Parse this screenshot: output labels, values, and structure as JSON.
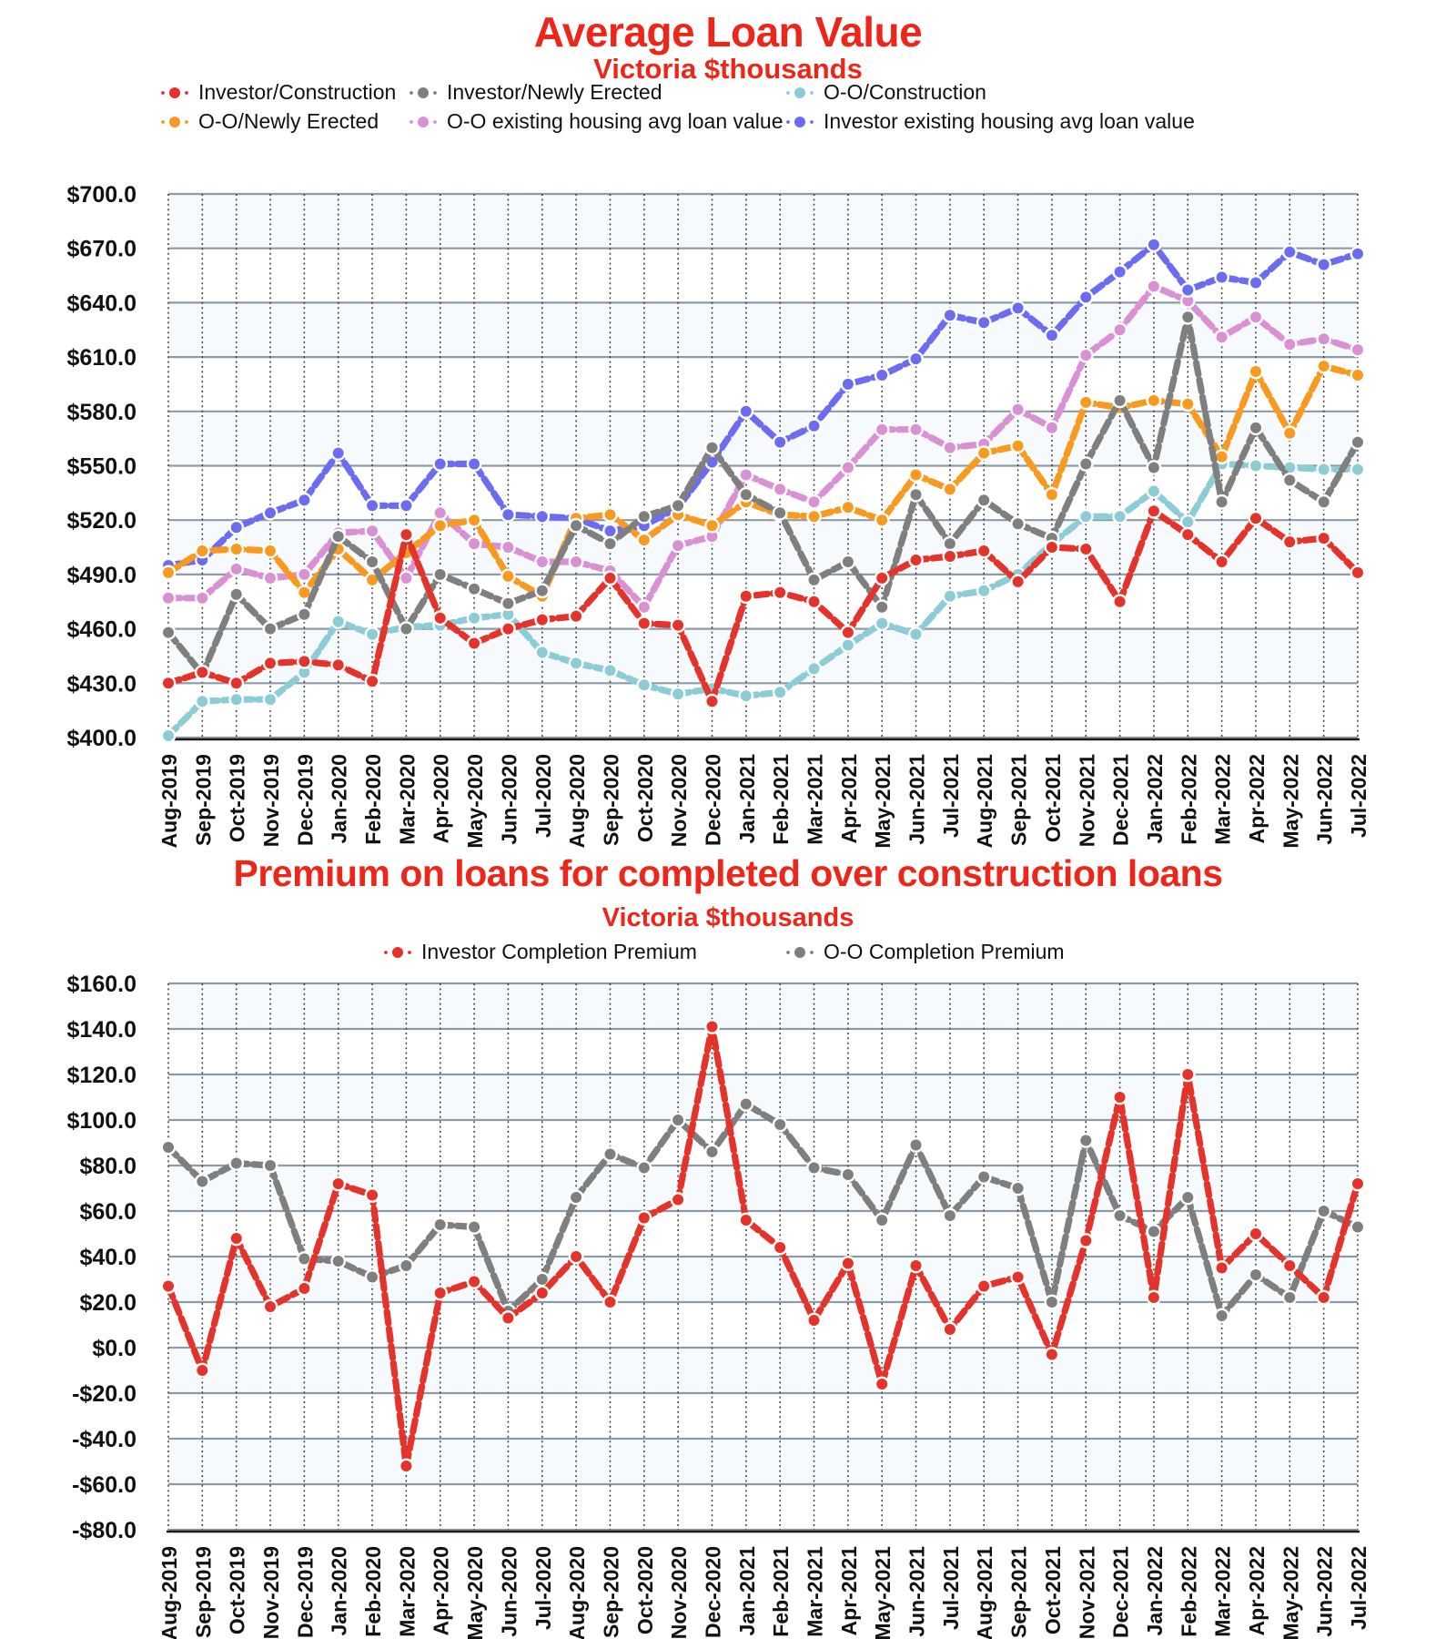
{
  "charts": [
    {
      "title": "Average Loan Value",
      "subtitle": "Victoria $thousands",
      "chart_data": {
        "type": "line",
        "x": [
          "Aug-2019",
          "Sep-2019",
          "Oct-2019",
          "Nov-2019",
          "Dec-2019",
          "Jan-2020",
          "Feb-2020",
          "Mar-2020",
          "Apr-2020",
          "May-2020",
          "Jun-2020",
          "Jul-2020",
          "Aug-2020",
          "Sep-2020",
          "Oct-2020",
          "Nov-2020",
          "Dec-2020",
          "Jan-2021",
          "Feb-2021",
          "Mar-2021",
          "Apr-2021",
          "May-2021",
          "Jun-2021",
          "Jul-2021",
          "Aug-2021",
          "Sep-2021",
          "Oct-2021",
          "Nov-2021",
          "Dec-2021",
          "Jan-2022",
          "Feb-2022",
          "Mar-2022",
          "Apr-2022",
          "May-2022",
          "Jun-2022",
          "Jul-2022"
        ],
        "ylim": [
          400,
          700
        ],
        "ytick_step": 30,
        "y_ticks": [
          "$700.0",
          "$670.0",
          "$640.0",
          "$610.0",
          "$580.0",
          "$550.0",
          "$520.0",
          "$490.0",
          "$460.0",
          "$430.0",
          "$400.0"
        ],
        "grid": "both",
        "legend_position": "top",
        "series": [
          {
            "name": "Investor/Construction",
            "color": "#e3332a",
            "values": [
              430,
              436,
              430,
              441,
              442,
              440,
              431,
              512,
              466,
              452,
              460,
              465,
              467,
              488,
              463,
              462,
              420,
              478,
              480,
              475,
              458,
              488,
              498,
              500,
              503,
              486,
              505,
              504,
              475,
              525,
              512,
              497,
              521,
              508,
              510,
              491
            ]
          },
          {
            "name": "Investor/Newly Erected",
            "color": "#7f7f7f",
            "values": [
              458,
              435,
              479,
              460,
              468,
              511,
              497,
              460,
              490,
              482,
              474,
              481,
              517,
              507,
              522,
              528,
              560,
              534,
              524,
              487,
              497,
              472,
              534,
              507,
              531,
              518,
              510,
              551,
              586,
              549,
              632,
              530,
              571,
              542,
              530,
              563
            ]
          },
          {
            "name": "O-O/Construction",
            "color": "#8bccd6",
            "values": [
              401,
              420,
              421,
              421,
              436,
              464,
              457,
              461,
              462,
              466,
              468,
              447,
              441,
              437,
              429,
              424,
              427,
              423,
              425,
              438,
              451,
              463,
              457,
              478,
              481,
              490,
              507,
              522,
              522,
              536,
              519,
              551,
              550,
              549,
              548,
              548
            ]
          },
          {
            "name": "O-O/Newly Erected",
            "color": "#f79a1f",
            "values": [
              491,
              503,
              504,
              503,
              480,
              504,
              487,
              502,
              517,
              520,
              489,
              478,
              521,
              523,
              509,
              523,
              517,
              530,
              523,
              522,
              527,
              520,
              545,
              537,
              557,
              561,
              534,
              585,
              582,
              586,
              584,
              555,
              602,
              568,
              605,
              600
            ]
          },
          {
            "name": "O-O existing housing avg loan value",
            "color": "#d990d4",
            "values": [
              477,
              477,
              493,
              488,
              490,
              513,
              514,
              488,
              524,
              507,
              505,
              497,
              497,
              492,
              472,
              506,
              511,
              545,
              537,
              530,
              549,
              570,
              570,
              560,
              562,
              581,
              571,
              611,
              625,
              649,
              641,
              621,
              632,
              617,
              620,
              614
            ]
          },
          {
            "name": "Investor existing housing avg loan value",
            "color": "#6c6cf0",
            "values": [
              495,
              498,
              516,
              524,
              531,
              557,
              528,
              528,
              551,
              551,
              523,
              522,
              521,
              514,
              517,
              527,
              552,
              580,
              563,
              572,
              595,
              600,
              609,
              633,
              629,
              637,
              622,
              643,
              657,
              672,
              647,
              654,
              651,
              668,
              661,
              667
            ]
          }
        ]
      }
    },
    {
      "title": "Premium on loans for completed over construction loans",
      "subtitle": "Victoria $thousands",
      "chart_data": {
        "type": "line",
        "x": [
          "Aug-2019",
          "Sep-2019",
          "Oct-2019",
          "Nov-2019",
          "Dec-2019",
          "Jan-2020",
          "Feb-2020",
          "Mar-2020",
          "Apr-2020",
          "May-2020",
          "Jun-2020",
          "Jul-2020",
          "Aug-2020",
          "Sep-2020",
          "Oct-2020",
          "Nov-2020",
          "Dec-2020",
          "Jan-2021",
          "Feb-2021",
          "Mar-2021",
          "Apr-2021",
          "May-2021",
          "Jun-2021",
          "Jul-2021",
          "Aug-2021",
          "Sep-2021",
          "Oct-2021",
          "Nov-2021",
          "Dec-2021",
          "Jan-2022",
          "Feb-2022",
          "Mar-2022",
          "Apr-2022",
          "May-2022",
          "Jun-2022",
          "Jul-2022"
        ],
        "ylim": [
          -80,
          160
        ],
        "ytick_step": 20,
        "y_ticks": [
          "$160.0",
          "$140.0",
          "$120.0",
          "$100.0",
          "$80.0",
          "$60.0",
          "$40.0",
          "$20.0",
          "$0.0",
          "-$20.0",
          "-$40.0",
          "-$60.0",
          "-$80.0"
        ],
        "grid": "both",
        "legend_position": "top",
        "series": [
          {
            "name": "Investor Completion Premium",
            "color": "#e3332a",
            "values": [
              27,
              -10,
              48,
              18,
              26,
              72,
              67,
              -52,
              24,
              29,
              13,
              24,
              40,
              20,
              57,
              65,
              141,
              56,
              44,
              12,
              37,
              -16,
              36,
              8,
              27,
              31,
              -3,
              47,
              110,
              22,
              120,
              35,
              50,
              36,
              22,
              72
            ]
          },
          {
            "name": "O-O Completion Premium",
            "color": "#7f7f7f",
            "values": [
              88,
              73,
              81,
              80,
              39,
              38,
              31,
              36,
              54,
              53,
              16,
              30,
              66,
              85,
              79,
              100,
              86,
              107,
              98,
              79,
              76,
              56,
              89,
              58,
              75,
              70,
              20,
              91,
              58,
              51,
              66,
              14,
              32,
              22,
              60,
              53
            ]
          }
        ]
      }
    }
  ],
  "style": {
    "title_color": "#ee2619",
    "gridline_color": "#8d9aa7",
    "axis_color": "#1a1a1a",
    "band_color": "#eff5fa"
  }
}
